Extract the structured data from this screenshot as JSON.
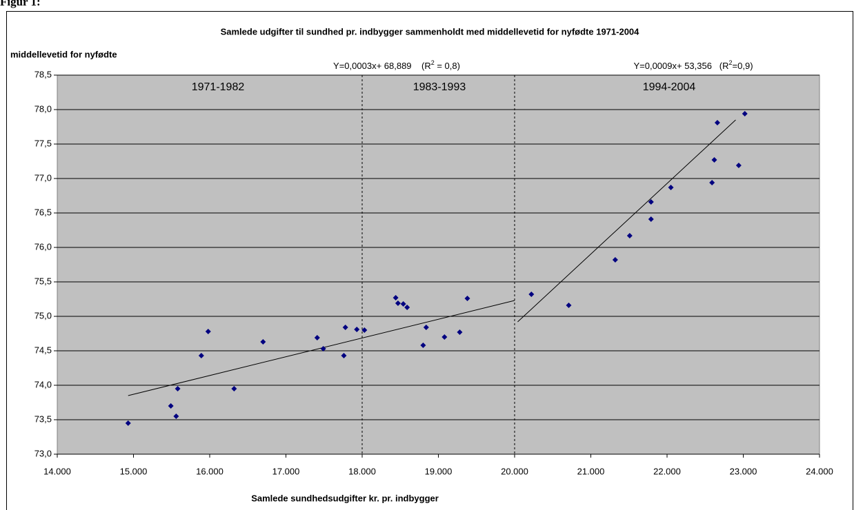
{
  "figure_label": "Figur 1:",
  "chart_data": {
    "type": "scatter",
    "title": "Samlede udgifter til sundhed pr. indbygger sammenholdt med middellevetid for nyfødte 1971-2004",
    "y_label": "middellevetid for nyfødte",
    "x_label": "Samlede sundhedsudgifter kr. pr. indbygger",
    "xlim": [
      14000,
      24000
    ],
    "ylim": [
      73.0,
      78.5
    ],
    "xticks": [
      {
        "value": 14000,
        "label": "14.000"
      },
      {
        "value": 15000,
        "label": "15.000"
      },
      {
        "value": 16000,
        "label": "16.000"
      },
      {
        "value": 17000,
        "label": "17.000"
      },
      {
        "value": 18000,
        "label": "18.000"
      },
      {
        "value": 19000,
        "label": "19.000"
      },
      {
        "value": 20000,
        "label": "20.000"
      },
      {
        "value": 21000,
        "label": "21.000"
      },
      {
        "value": 22000,
        "label": "22.000"
      },
      {
        "value": 23000,
        "label": "23.000"
      },
      {
        "value": 24000,
        "label": "24.000"
      }
    ],
    "yticks": [
      {
        "value": 73.0,
        "label": "73,0"
      },
      {
        "value": 73.5,
        "label": "73,5"
      },
      {
        "value": 74.0,
        "label": "74,0"
      },
      {
        "value": 74.5,
        "label": "74,5"
      },
      {
        "value": 75.0,
        "label": "75,0"
      },
      {
        "value": 75.5,
        "label": "75,5"
      },
      {
        "value": 76.0,
        "label": "76,0"
      },
      {
        "value": 76.5,
        "label": "76,5"
      },
      {
        "value": 77.0,
        "label": "77,0"
      },
      {
        "value": 77.5,
        "label": "77,5"
      },
      {
        "value": 78.0,
        "label": "78,0"
      },
      {
        "value": 78.5,
        "label": "78,5"
      }
    ],
    "grid": true,
    "background": "#c0c0c0",
    "series": [
      {
        "color": "#000080",
        "x": [
          14930,
          15490,
          15560,
          15580,
          15890,
          15980,
          16320,
          16700,
          17410,
          17490,
          17760,
          17780,
          17930,
          18030,
          18440,
          18470,
          18540,
          18590,
          18800,
          18840,
          19080,
          19280,
          19380,
          20220,
          20710,
          21320,
          21510,
          21790,
          21790,
          22050,
          22590,
          22620,
          22660,
          22940,
          23020
        ],
        "values": [
          73.45,
          73.7,
          73.55,
          73.95,
          74.43,
          74.78,
          73.95,
          74.63,
          74.69,
          74.53,
          74.43,
          74.84,
          74.81,
          74.8,
          75.27,
          75.19,
          75.18,
          75.13,
          74.58,
          74.84,
          74.7,
          74.77,
          75.26,
          75.32,
          75.16,
          75.82,
          76.17,
          76.41,
          76.66,
          76.87,
          76.94,
          77.27,
          77.81,
          77.19,
          77.94
        ]
      }
    ],
    "trendlines": [
      {
        "x": [
          14930,
          20000
        ],
        "values": [
          73.85,
          75.23
        ],
        "color": "#000000"
      },
      {
        "x": [
          20040,
          22900
        ],
        "values": [
          74.92,
          77.85
        ],
        "color": "#000000"
      }
    ],
    "dividers": [
      18000,
      20000
    ],
    "periods": [
      "1971-1982",
      "1983-1993",
      "1994-2004"
    ],
    "equations": [
      {
        "text": "Y=0,0003x+ 68,889    (R",
        "sup": "2",
        "tail": " = 0,8)"
      },
      {
        "text": "Y=0,0009x+ 53,356   (R",
        "sup": "2",
        "tail": "=0,9)"
      }
    ]
  }
}
